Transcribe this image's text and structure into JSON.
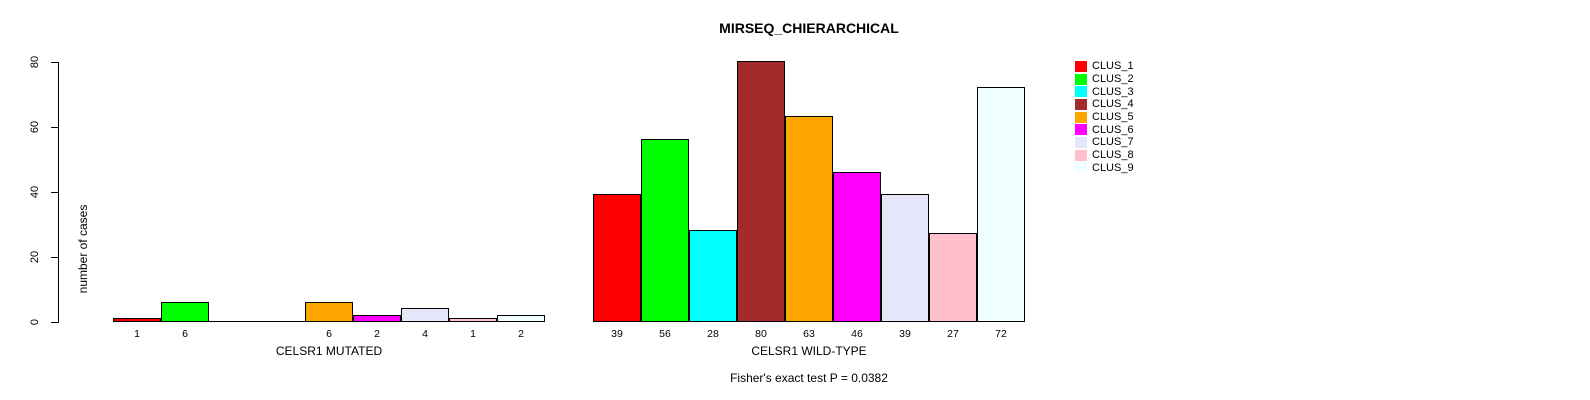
{
  "figure": {
    "title": "MIRSEQ_CHIERARCHICAL",
    "annotation": "Fisher's exact test P = 0.0382"
  },
  "chart_data": {
    "type": "bar",
    "title": "MIRSEQ_CHIERARCHICAL",
    "xlabel": "",
    "ylabel": "number of cases",
    "ylim": [
      0,
      80
    ],
    "y_ticks": [
      0,
      20,
      40,
      60,
      80
    ],
    "grid": false,
    "legend_position": "right",
    "series": [
      {
        "label": "CLUS_1",
        "color": "#FF0000"
      },
      {
        "label": "CLUS_2",
        "color": "#00FF00"
      },
      {
        "label": "CLUS_3",
        "color": "#00FFFF"
      },
      {
        "label": "CLUS_4",
        "color": "#A52A2A"
      },
      {
        "label": "CLUS_5",
        "color": "#FFA500"
      },
      {
        "label": "CLUS_6",
        "color": "#FF00FF"
      },
      {
        "label": "CLUS_7",
        "color": "#E6E6FA"
      },
      {
        "label": "CLUS_8",
        "color": "#FFC0CB"
      },
      {
        "label": "CLUS_9",
        "color": "#F0FFFF"
      }
    ],
    "groups": [
      {
        "label": "CELSR1 MUTATED",
        "values": [
          1,
          6,
          0,
          0,
          6,
          2,
          4,
          1,
          2
        ]
      },
      {
        "label": "CELSR1 WILD-TYPE",
        "values": [
          39,
          56,
          28,
          80,
          63,
          46,
          39,
          27,
          72
        ]
      }
    ],
    "annotation": "Fisher's exact test P = 0.0382"
  }
}
